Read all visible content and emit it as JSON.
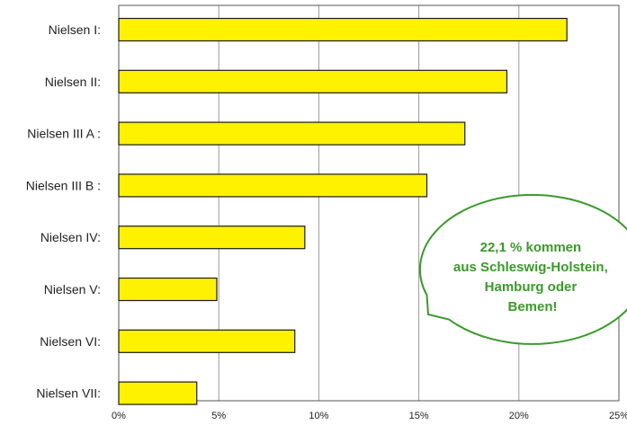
{
  "chart_data": {
    "type": "bar",
    "orientation": "horizontal",
    "categories": [
      "Nielsen I:",
      "Nielsen II:",
      "Nielsen III A :",
      "Nielsen III B :",
      "Nielsen IV:",
      "Nielsen V:",
      "Nielsen VI:",
      "Nielsen VII:"
    ],
    "values": [
      22.4,
      19.4,
      17.3,
      15.4,
      9.3,
      4.9,
      8.8,
      3.9
    ],
    "xlim": [
      0,
      25
    ],
    "xticks": [
      0,
      5,
      10,
      15,
      20,
      25
    ],
    "xtick_labels": [
      "0%",
      "5%",
      "10%",
      "15%",
      "20%",
      "25%"
    ],
    "grid": "vertical",
    "title": "",
    "xlabel": "",
    "ylabel": "",
    "annotation": {
      "lines": [
        "22,1 % kommen",
        "aus Schleswig-Holstein,",
        "Hamburg oder",
        "Bemen!"
      ]
    }
  },
  "colors": {
    "bar_fill": "#fff200",
    "bar_stroke": "#1a1a1a",
    "grid": "#9a9a9a",
    "plot_border": "#555555",
    "bubble_fill": "#ffffff",
    "bubble_stroke": "#3a9a2a",
    "bubble_text": "#3a9a2a"
  }
}
